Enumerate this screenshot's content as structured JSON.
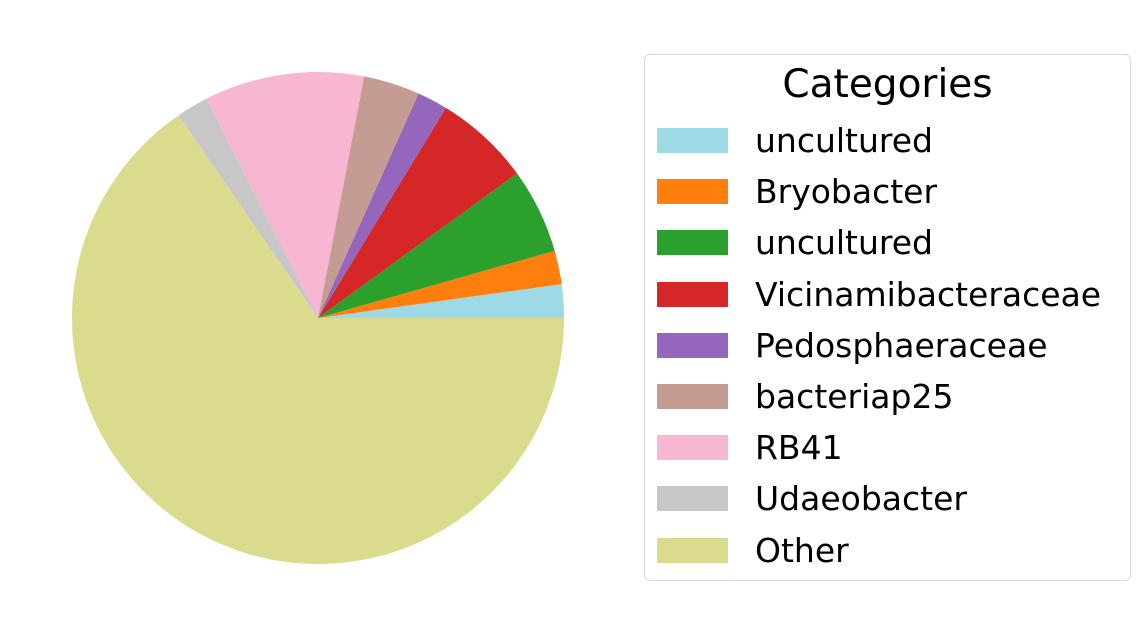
{
  "chart_data": {
    "type": "pie",
    "title": "",
    "legend": {
      "title": "Categories",
      "placement": "right"
    },
    "slices": [
      {
        "label": "uncultured",
        "value": 2.2,
        "color": "#9edae5"
      },
      {
        "label": "Bryobacter",
        "value": 2.2,
        "color": "#ff7f0e"
      },
      {
        "label": "uncultured",
        "value": 5.6,
        "color": "#2ca02c"
      },
      {
        "label": "Vicinamibacteraceae",
        "value": 6.3,
        "color": "#d62728"
      },
      {
        "label": "Pedosphaeraceae",
        "value": 2.0,
        "color": "#9467bd"
      },
      {
        "label": "bacteriap25",
        "value": 3.7,
        "color": "#c49c94"
      },
      {
        "label": "RB41",
        "value": 10.5,
        "color": "#f7b6d2"
      },
      {
        "label": "Udaeobacter",
        "value": 2.1,
        "color": "#c7c7c7"
      },
      {
        "label": "Other",
        "value": 65.4,
        "color": "#dbdb8d"
      }
    ],
    "start_angle_deg": 0,
    "direction": "counterclockwise"
  }
}
